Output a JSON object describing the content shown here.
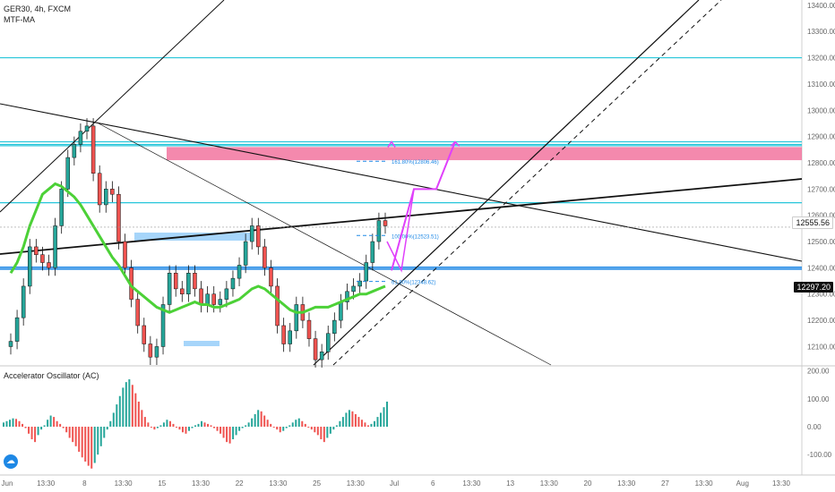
{
  "header": {
    "symbol_line": "GER30, 4h, FXCM",
    "indicator": "MTF-MA",
    "oscillator": "Accelerator Oscillator (AC)"
  },
  "price_tags": {
    "current": "12555.56",
    "ma": "12297.20"
  },
  "logo": {
    "icon": "tradingview-logo-icon",
    "glyph": "☁"
  },
  "chart_data": [
    {
      "type": "candlestick",
      "price_axis": {
        "ylim": [
          12030,
          13420
        ],
        "ticks": [
          13400,
          13300,
          13200,
          13100,
          13000,
          12900,
          12800,
          12700,
          12600,
          12500,
          12400,
          12300,
          12200,
          12100
        ],
        "tick_labels": [
          "13400.00",
          "13300.00",
          "13200.00",
          "13100.00",
          "13000.00",
          "12900.00",
          "12800.00",
          "12700.00",
          "12600.00",
          "12500.00",
          "12400.00",
          "12300.00",
          "12200.00",
          "12100.00"
        ]
      },
      "time_axis": {
        "labels": [
          "Jun",
          "13:30",
          "8",
          "13:30",
          "15",
          "13:30",
          "22",
          "13:30",
          "25",
          "13:30",
          "Jul",
          "6",
          "13:30",
          "13",
          "13:30",
          "20",
          "13:30",
          "27",
          "13:30",
          "Aug",
          "13:30"
        ]
      },
      "close_series": [
        12120,
        12210,
        12330,
        12480,
        12450,
        12420,
        12400,
        12560,
        12700,
        12820,
        12870,
        12920,
        12940,
        12760,
        12640,
        12700,
        12680,
        12500,
        12400,
        12280,
        12180,
        12110,
        12060,
        12100,
        12260,
        12380,
        12320,
        12300,
        12380,
        12320,
        12260,
        12300,
        12260,
        12280,
        12320,
        12360,
        12410,
        12500,
        12560,
        12480,
        12400,
        12330,
        12180,
        12110,
        12160,
        12260,
        12200,
        12130,
        12050,
        12080,
        12150,
        12200,
        12270,
        12310,
        12330,
        12350,
        12420,
        12500,
        12580,
        12560
      ],
      "ma_series": [
        12380,
        12420,
        12480,
        12560,
        12620,
        12680,
        12700,
        12720,
        12710,
        12690,
        12670,
        12640,
        12600,
        12560,
        12520,
        12480,
        12440,
        12410,
        12370,
        12330,
        12310,
        12290,
        12270,
        12250,
        12240,
        12230,
        12240,
        12250,
        12260,
        12270,
        12260,
        12260,
        12250,
        12250,
        12260,
        12270,
        12280,
        12300,
        12320,
        12330,
        12320,
        12300,
        12280,
        12260,
        12240,
        12230,
        12230,
        12240,
        12250,
        12250,
        12250,
        12260,
        12270,
        12280,
        12290,
        12300,
        12300,
        12310,
        12320,
        12330
      ],
      "horizontal_levels": [
        {
          "price": 13200,
          "color": "#26c6da"
        },
        {
          "price": 12880,
          "color": "#26c6da"
        },
        {
          "price": 12870,
          "color": "#26c6da"
        },
        {
          "price": 12865,
          "color": "#26c6da"
        },
        {
          "price": 12648,
          "color": "#26c6da"
        },
        {
          "price": 12402,
          "color": "#1e88e5"
        },
        {
          "price": 12395,
          "color": "#1e88e5"
        }
      ],
      "zones": [
        {
          "name": "resistance-zone",
          "from": 12810,
          "to": 12860,
          "color": "#f06292"
        }
      ],
      "fib_levels": [
        {
          "label": "161.80%(12806.46)",
          "price": 12806
        },
        {
          "label": "100.00%(12523.51)",
          "price": 12523
        },
        {
          "label": "61.80%(12348.62)",
          "price": 12348
        }
      ],
      "projection_path": [
        12390,
        12700,
        12700,
        12880
      ],
      "colors": {
        "up": "#26a69a",
        "down": "#ef5350",
        "ma": "#4cd137",
        "projection": "#e040fb"
      }
    },
    {
      "type": "bar",
      "name": "Accelerator Oscillator (AC)",
      "ylim": [
        -170,
        215
      ],
      "ticks": [
        200,
        100,
        0,
        -100
      ],
      "tick_labels": [
        "200.00",
        "100.00",
        "0.00",
        "-100.00"
      ],
      "values": [
        15,
        20,
        25,
        30,
        28,
        20,
        10,
        -5,
        -25,
        -45,
        -55,
        -30,
        -10,
        5,
        25,
        40,
        35,
        20,
        10,
        -5,
        -20,
        -40,
        -55,
        -70,
        -90,
        -110,
        -125,
        -140,
        -150,
        -130,
        -100,
        -70,
        -40,
        -10,
        20,
        50,
        80,
        110,
        140,
        160,
        170,
        150,
        120,
        90,
        60,
        35,
        15,
        0,
        -10,
        -5,
        5,
        15,
        25,
        20,
        10,
        0,
        -10,
        -20,
        -25,
        -15,
        -5,
        5,
        10,
        20,
        15,
        10,
        5,
        -5,
        -15,
        -25,
        -40,
        -55,
        -60,
        -45,
        -30,
        -15,
        -5,
        5,
        15,
        30,
        45,
        60,
        55,
        40,
        25,
        10,
        0,
        -10,
        -20,
        -15,
        -5,
        5,
        15,
        25,
        30,
        20,
        10,
        0,
        -10,
        -20,
        -30,
        -45,
        -55,
        -40,
        -25,
        -10,
        5,
        20,
        35,
        50,
        60,
        55,
        45,
        35,
        25,
        15,
        5,
        10,
        20,
        35,
        50,
        70,
        90
      ]
    }
  ]
}
